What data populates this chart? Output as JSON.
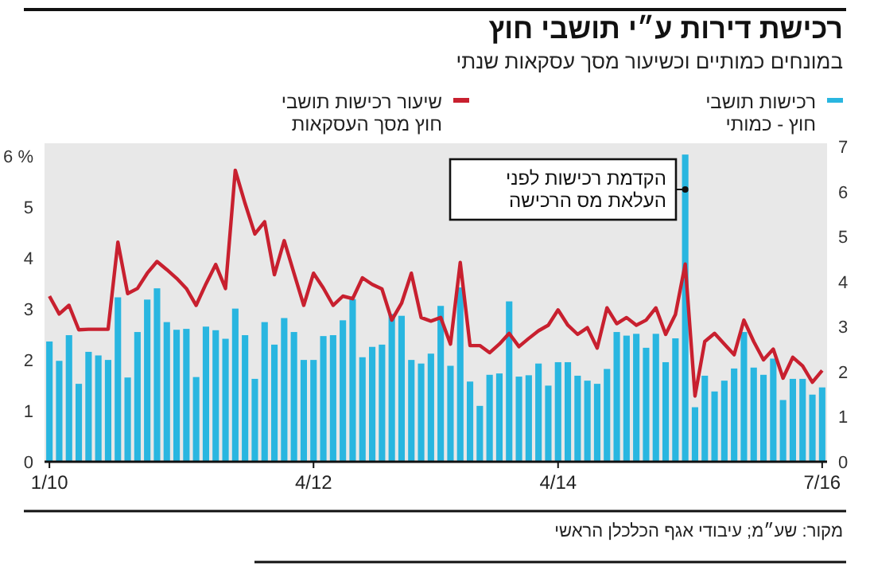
{
  "chart_data": {
    "type": "bar",
    "title": "רכישת דירות ע״י תושבי חוץ",
    "subtitle": "במונחים כמותיים וכשיעור מסך עסקאות שנתי",
    "categories": [
      "1/10",
      null,
      null,
      null,
      null,
      null,
      null,
      null,
      null,
      null,
      null,
      null,
      null,
      null,
      null,
      null,
      null,
      null,
      null,
      null,
      null,
      null,
      null,
      null,
      null,
      null,
      null,
      "4/12",
      null,
      null,
      null,
      null,
      null,
      null,
      null,
      null,
      null,
      null,
      null,
      null,
      null,
      null,
      null,
      null,
      null,
      null,
      null,
      null,
      null,
      null,
      null,
      null,
      "4/14",
      null,
      null,
      null,
      null,
      null,
      null,
      null,
      null,
      null,
      null,
      null,
      null,
      null,
      null,
      null,
      null,
      null,
      null,
      null,
      null,
      null,
      null,
      null,
      null,
      null,
      null,
      "7/16"
    ],
    "series": [
      {
        "name": "רכישות תושבי\nחוץ - כמותי",
        "type": "bar",
        "axis": "y2",
        "color": "#29b6e0",
        "values": [
          2.67,
          2.24,
          2.81,
          1.73,
          2.44,
          2.36,
          2.26,
          3.65,
          1.87,
          2.88,
          3.6,
          3.85,
          3.1,
          2.93,
          2.95,
          1.88,
          3.0,
          2.92,
          2.73,
          3.4,
          2.81,
          1.84,
          3.1,
          2.6,
          3.19,
          2.88,
          2.26,
          2.26,
          2.79,
          2.81,
          3.14,
          3.61,
          2.32,
          2.55,
          2.6,
          3.28,
          3.24,
          2.26,
          2.18,
          2.4,
          3.46,
          2.13,
          3.87,
          1.78,
          1.24,
          1.93,
          1.96,
          3.56,
          1.89,
          1.92,
          2.18,
          1.69,
          2.21,
          2.21,
          1.91,
          1.8,
          1.73,
          2.06,
          2.88,
          2.8,
          2.84,
          2.53,
          2.84,
          2.21,
          2.74,
          6.82,
          1.21,
          1.91,
          1.56,
          1.8,
          2.07,
          2.88,
          2.09,
          1.93,
          2.29,
          1.37,
          1.84,
          1.84,
          1.49,
          1.65
        ]
      },
      {
        "name": "שיעור רכישות תושבי\nחוץ מסך העסקאות",
        "type": "line",
        "color": "#c8202f",
        "values": [
          3.25,
          2.9,
          3.07,
          2.59,
          2.6,
          2.6,
          2.6,
          4.31,
          3.3,
          3.4,
          3.7,
          3.93,
          3.77,
          3.6,
          3.4,
          3.07,
          3.49,
          3.87,
          3.4,
          5.72,
          5.07,
          4.47,
          4.71,
          3.67,
          4.34,
          3.7,
          3.07,
          3.7,
          3.41,
          3.07,
          3.25,
          3.2,
          3.61,
          3.48,
          3.39,
          2.78,
          3.11,
          3.7,
          2.83,
          2.76,
          2.83,
          2.31,
          3.91,
          2.28,
          2.28,
          2.14,
          2.31,
          2.52,
          2.26,
          2.42,
          2.57,
          2.68,
          2.98,
          2.68,
          2.5,
          2.63,
          2.23,
          3.02,
          2.71,
          2.83,
          2.68,
          2.78,
          3.02,
          2.5,
          2.89,
          3.88,
          1.29,
          2.36,
          2.52,
          2.31,
          2.1,
          2.78,
          2.36,
          2.0,
          2.21,
          1.64,
          2.05,
          1.88,
          1.56,
          1.79
        ]
      }
    ],
    "ylim": [
      0,
      6.25
    ],
    "yticks": [
      0,
      1,
      2,
      3,
      4,
      5,
      {
        "value": 6,
        "label": "6 %"
      }
    ],
    "y2lim": [
      0,
      7.07
    ],
    "y2ticks": [
      0,
      1,
      2,
      3,
      4,
      5,
      6,
      7
    ],
    "legend": "top",
    "grid": false,
    "annotations": [
      "הקדמת רכישות לפני\nהעלאת מס הרכישה",
      "מקור: שע״מ; עיבודי אגף הכלכלן הראשי"
    ]
  }
}
